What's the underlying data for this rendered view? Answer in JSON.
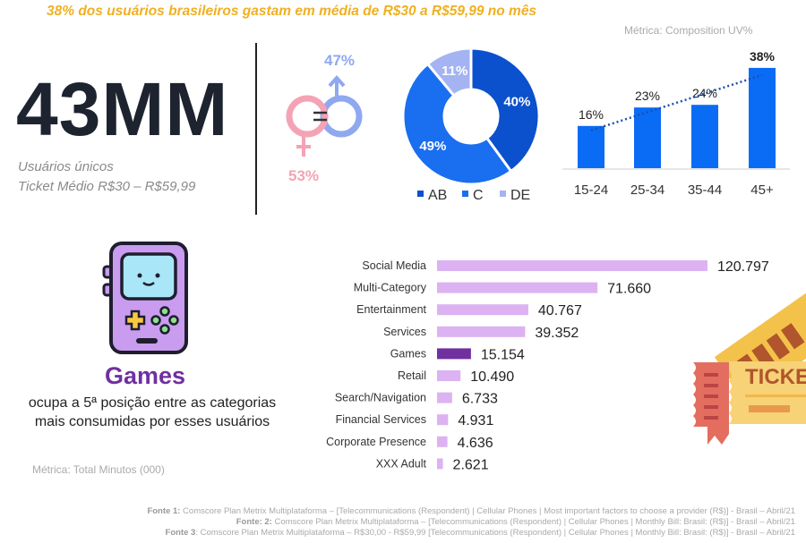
{
  "headline": "38% dos usuários brasileiros gastam em média de R$30 a R$59,99 no mês",
  "metric_top": "Métrica: Composition UV%",
  "kpi": {
    "value": "43MM",
    "line1": "Usuários únicos",
    "line2": "Ticket Médio R$30 – R$59,99"
  },
  "gender": {
    "male_pct": "47%",
    "female_pct": "53%",
    "male_color": "#8fa8f0",
    "female_color": "#f4a3b5"
  },
  "games": {
    "title": "Games",
    "description": "ocupa a 5ª posição entre as categorias mais consumidas por esses usuários",
    "icon": "game-console-icon"
  },
  "metric_bottom": "Métrica: Total Minutos (000)",
  "ticket_illustration": {
    "icon": "ticket-icon",
    "lettering": [
      "TICKET",
      "TICKET"
    ]
  },
  "sources": [
    {
      "label": "Fonte 1:",
      "text": " Comscore Plan Metrix Multiplataforma –  [Telecommunications (Respondent) | Cellular Phones | Most important factors to choose a provider (R$)] - Brasil – Abril/21"
    },
    {
      "label": "Fonte: 2:",
      "text": " Comscore Plan Metrix Multiplataforma –  [Telecommunications (Respondent) | Cellular Phones | Monthly Bill: Brasil: (R$)] - Brasil – Abril/21"
    },
    {
      "label": "Fonte 3",
      "text": ": Comscore Plan Metrix Multiplataforma – R$30,00 - R$59,99 [Telecommunications (Respondent) | Cellular Phones | Monthly Bill: Brasil: (R$)] - Brasil – Abril/21"
    }
  ],
  "chart_data": [
    {
      "type": "pie",
      "subtype": "donut",
      "categories": [
        "AB",
        "C",
        "DE"
      ],
      "values": [
        40,
        49,
        11
      ],
      "labels": [
        "40%",
        "49%",
        "11%"
      ],
      "colors": [
        "#0b50cc",
        "#1a6ef0",
        "#a4b4f2"
      ],
      "legend_position": "bottom"
    },
    {
      "type": "bar",
      "categories": [
        "15-24",
        "25-34",
        "35-44",
        "45+"
      ],
      "values": [
        16,
        23,
        24,
        38
      ],
      "labels": [
        "16%",
        "23%",
        "24%",
        "38%"
      ],
      "color": "#0a6cf5",
      "trendline": "dotted",
      "grid": false
    },
    {
      "type": "bar",
      "orientation": "horizontal",
      "categories": [
        "Social Media",
        "Multi-Category",
        "Entertainment",
        "Services",
        "Games",
        "Retail",
        "Search/Navigation",
        "Financial Services",
        "Corporate Presence",
        "XXX Adult"
      ],
      "values": [
        120.797,
        71.66,
        40.767,
        39.352,
        15.154,
        10.49,
        6.733,
        4.931,
        4.636,
        2.621
      ],
      "labels": [
        "120.797",
        "71.660",
        "40.767",
        "39.352",
        "15.154",
        "10.490",
        "6.733",
        "4.931",
        "4.636",
        "2.621"
      ],
      "color": "#dcb2f2",
      "highlight": {
        "category": "Games",
        "color": "#7030a0"
      },
      "grid": false
    }
  ]
}
